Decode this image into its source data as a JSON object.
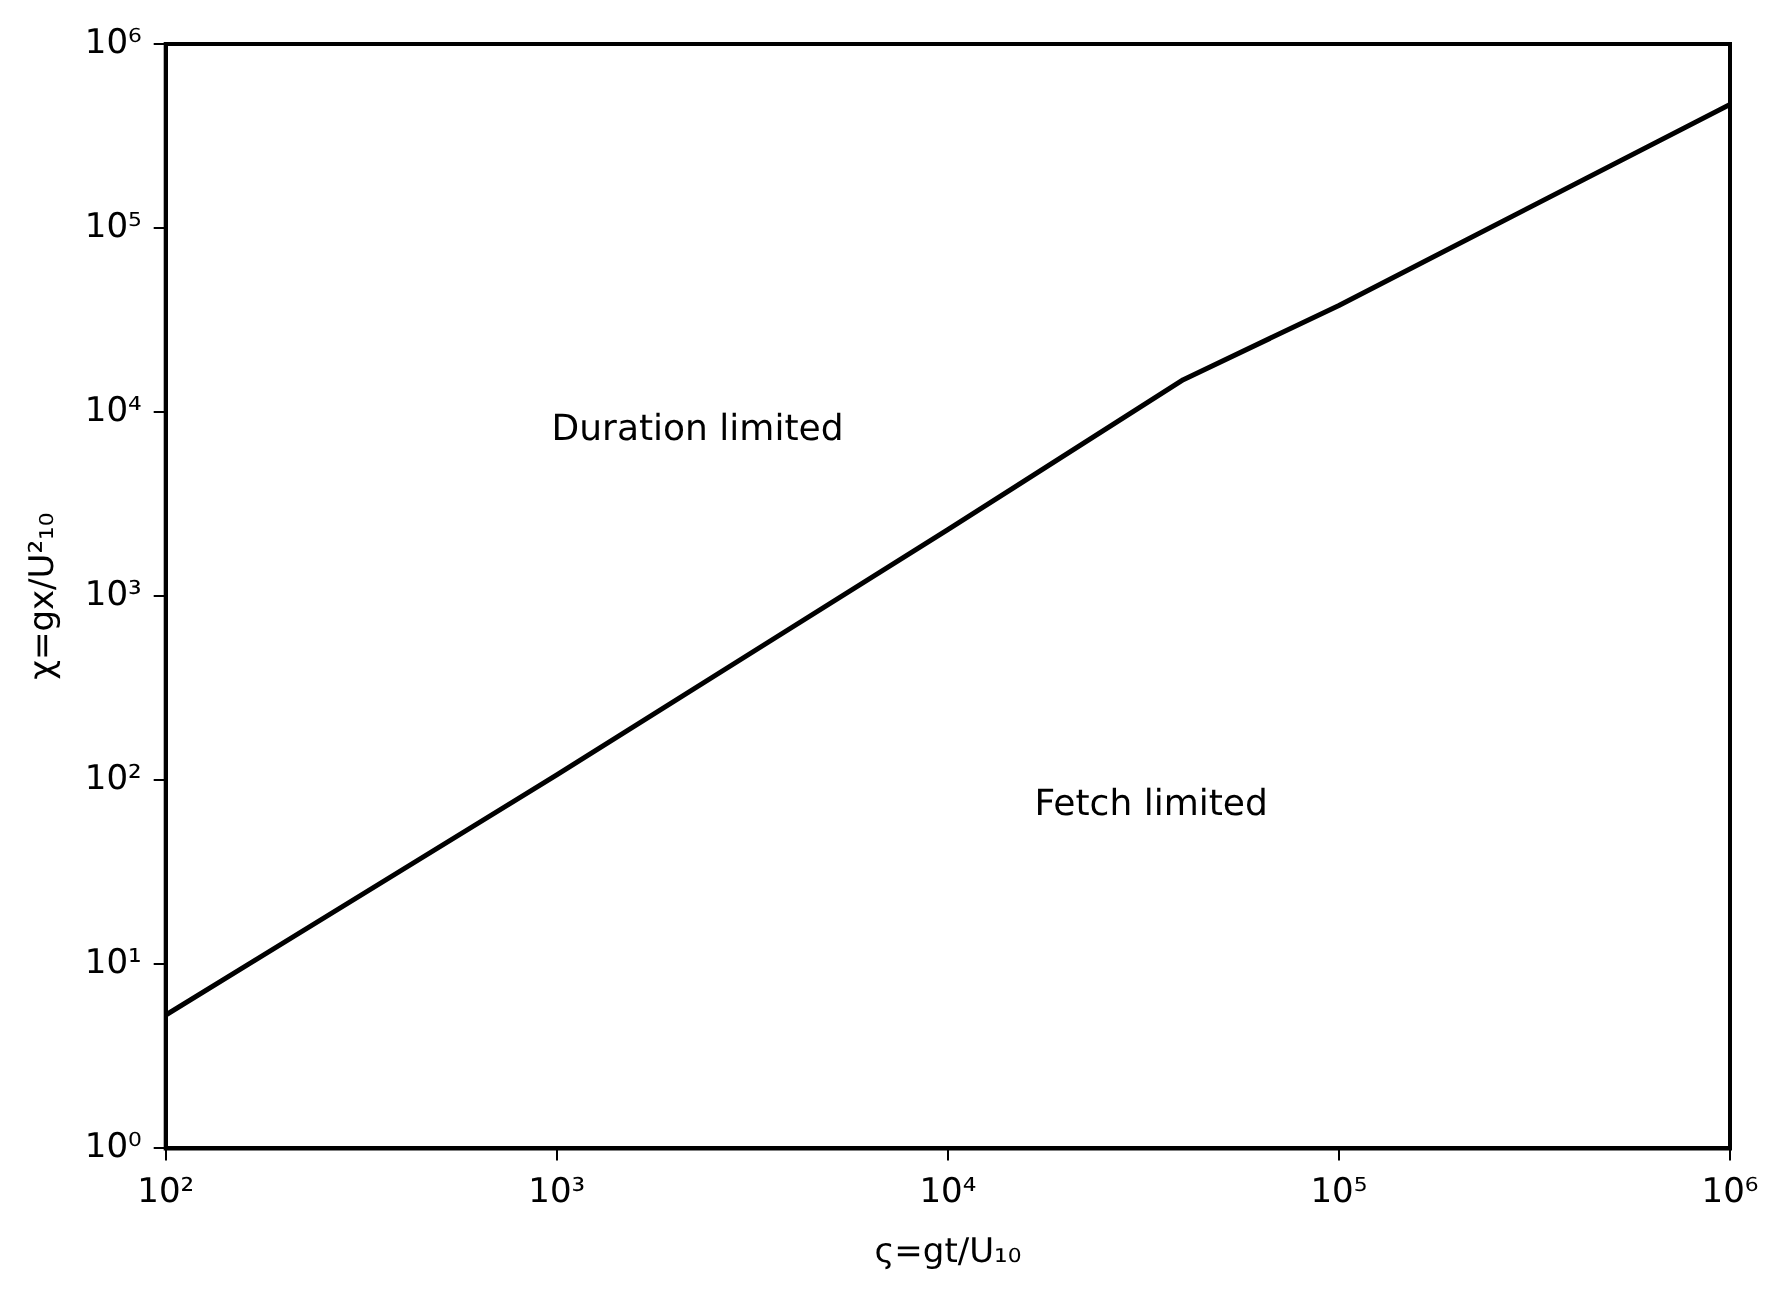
{
  "chart_data": {
    "type": "line",
    "xlabel": "ς=gt/U₁₀",
    "ylabel": "χ=gx/U²₁₀",
    "log": "xy",
    "x": [
      100,
      1000,
      10000,
      40000,
      100000,
      1000000
    ],
    "series": [
      {
        "color": "#000000",
        "values": [
          5.3,
          107,
          2300,
          15000,
          38000,
          470000
        ]
      }
    ],
    "xlim": [
      100,
      1000000
    ],
    "ylim": [
      1,
      1000000
    ],
    "xticks": [
      {
        "value": 100,
        "label": "10²"
      },
      {
        "value": 1000,
        "label": "10³"
      },
      {
        "value": 10000,
        "label": "10⁴"
      },
      {
        "value": 100000,
        "label": "10⁵"
      },
      {
        "value": 1000000,
        "label": "10⁶"
      }
    ],
    "yticks": [
      {
        "value": 1,
        "label": "10⁰"
      },
      {
        "value": 10,
        "label": "10¹"
      },
      {
        "value": 100,
        "label": "10²"
      },
      {
        "value": 1000,
        "label": "10³"
      },
      {
        "value": 10000,
        "label": "10⁴"
      },
      {
        "value": 100000,
        "label": "10⁵"
      },
      {
        "value": 1000000,
        "label": "10⁶"
      }
    ],
    "annotations": [
      "Duration limited",
      "Fetch limited"
    ],
    "grid": false,
    "legend": false,
    "marker": "none",
    "line_style": "solid"
  }
}
